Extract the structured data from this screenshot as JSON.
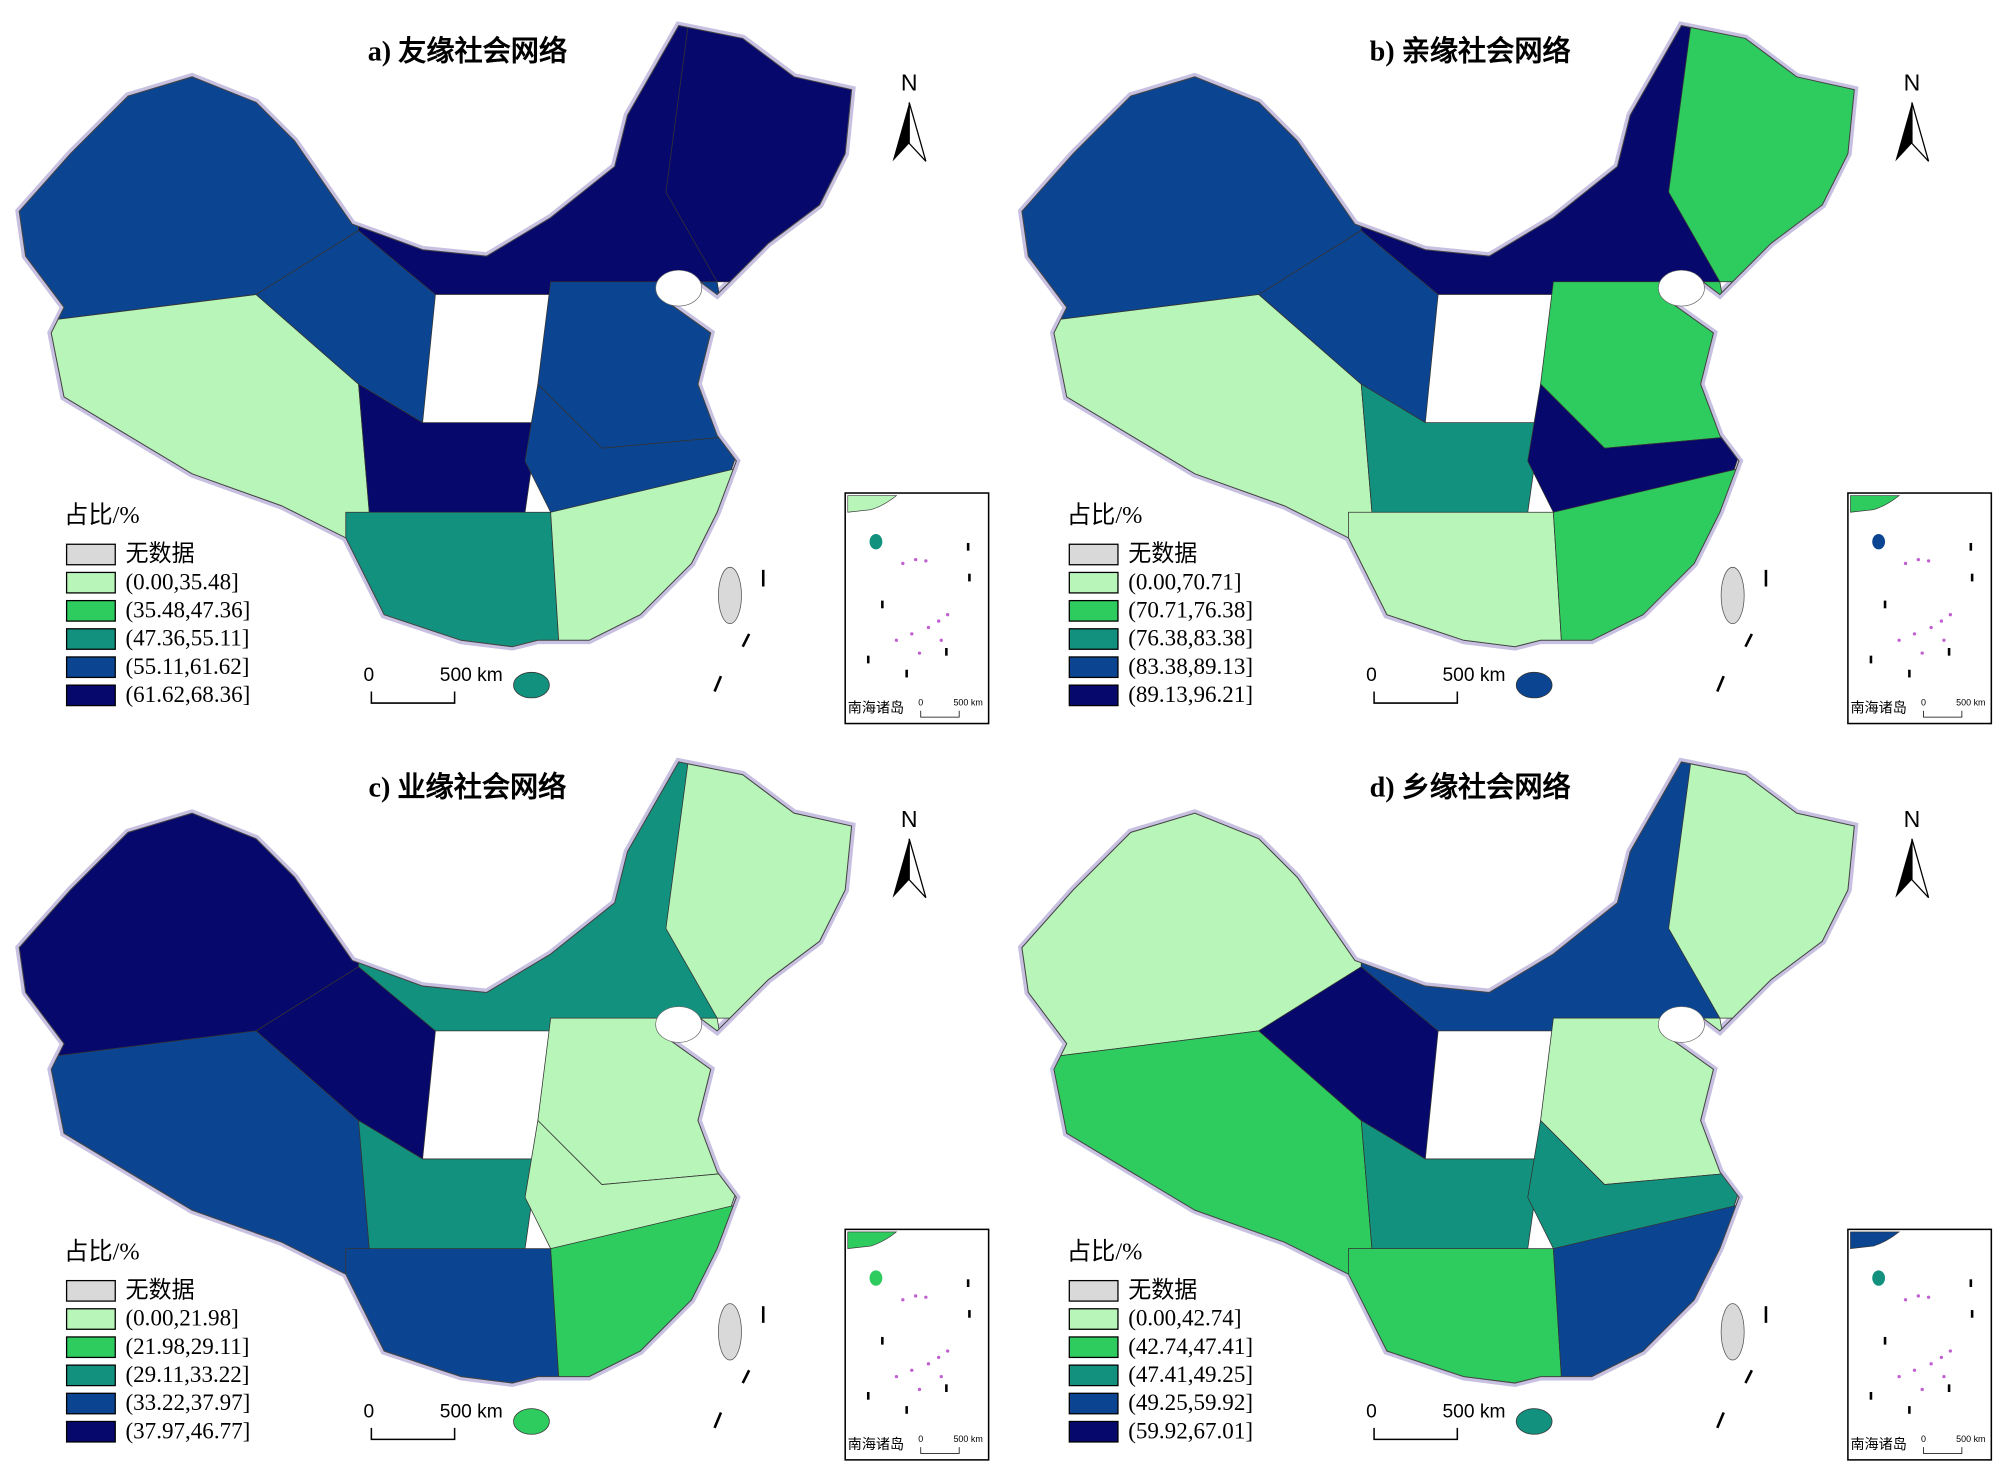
{
  "panels": [
    {
      "title": "a) 友缘社会网络",
      "north": "N",
      "scale_bar": {
        "zero": "0",
        "label": "500 km"
      },
      "legend": {
        "title": "占比/%",
        "items": [
          {
            "label": "无数据",
            "color": "#d9d9d9"
          },
          {
            "label": "(0.00,35.48]",
            "color": "#b8f5b8"
          },
          {
            "label": "(35.48,47.36]",
            "color": "#2ecc5f"
          },
          {
            "label": "(47.36,55.11]",
            "color": "#13917f"
          },
          {
            "label": "(55.11,61.62]",
            "color": "#0b4592"
          },
          {
            "label": "(61.62,68.36]",
            "color": "#06086b"
          }
        ]
      },
      "inset": {
        "label": "南海诸岛",
        "scale_zero": "0",
        "scale_label": "500 km"
      }
    },
    {
      "title": "b) 亲缘社会网络",
      "north": "N",
      "scale_bar": {
        "zero": "0",
        "label": "500 km"
      },
      "legend": {
        "title": "占比/%",
        "items": [
          {
            "label": "无数据",
            "color": "#d9d9d9"
          },
          {
            "label": "(0.00,70.71]",
            "color": "#b8f5b8"
          },
          {
            "label": "(70.71,76.38]",
            "color": "#2ecc5f"
          },
          {
            "label": "(76.38,83.38]",
            "color": "#13917f"
          },
          {
            "label": "(83.38,89.13]",
            "color": "#0b4592"
          },
          {
            "label": "(89.13,96.21]",
            "color": "#06086b"
          }
        ]
      },
      "inset": {
        "label": "南海诸岛",
        "scale_zero": "0",
        "scale_label": "500 km"
      }
    },
    {
      "title": "c) 业缘社会网络",
      "north": "N",
      "scale_bar": {
        "zero": "0",
        "label": "500 km"
      },
      "legend": {
        "title": "占比/%",
        "items": [
          {
            "label": "无数据",
            "color": "#d9d9d9"
          },
          {
            "label": "(0.00,21.98]",
            "color": "#b8f5b8"
          },
          {
            "label": "(21.98,29.11]",
            "color": "#2ecc5f"
          },
          {
            "label": "(29.11,33.22]",
            "color": "#13917f"
          },
          {
            "label": "(33.22,37.97]",
            "color": "#0b4592"
          },
          {
            "label": "(37.97,46.77]",
            "color": "#06086b"
          }
        ]
      },
      "inset": {
        "label": "南海诸岛",
        "scale_zero": "0",
        "scale_label": "500 km"
      }
    },
    {
      "title": "d) 乡缘社会网络",
      "north": "N",
      "scale_bar": {
        "zero": "0",
        "label": "500 km"
      },
      "legend": {
        "title": "占比/%",
        "items": [
          {
            "label": "无数据",
            "color": "#d9d9d9"
          },
          {
            "label": "(0.00,42.74]",
            "color": "#b8f5b8"
          },
          {
            "label": "(42.74,47.41]",
            "color": "#2ecc5f"
          },
          {
            "label": "(47.41,49.25]",
            "color": "#13917f"
          },
          {
            "label": "(49.25,59.92]",
            "color": "#0b4592"
          },
          {
            "label": "(59.92,67.01]",
            "color": "#06086b"
          }
        ]
      },
      "inset": {
        "label": "南海诸岛",
        "scale_zero": "0",
        "scale_label": "500 km"
      }
    }
  ]
}
